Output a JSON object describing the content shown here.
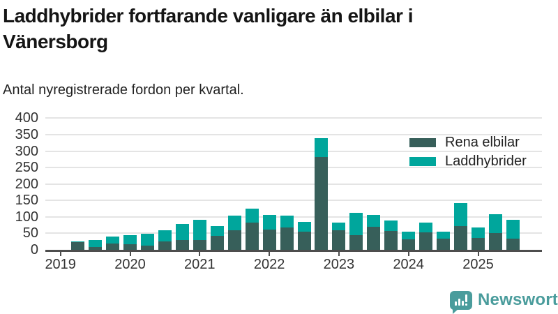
{
  "header": {
    "title": "Laddhybrider fortfarande vanligare än elbilar i Vänersborg",
    "subtitle": "Antal nyregistrerade fordon per kvartal."
  },
  "chart_data": {
    "type": "bar",
    "stacked": true,
    "title": "Laddhybrider fortfarande vanligare än elbilar i Vänersborg",
    "subtitle": "Antal nyregistrerade fordon per kvartal.",
    "x_unit": "quarter",
    "categories": [
      "2019Q2",
      "2019Q3",
      "2019Q4",
      "2020Q1",
      "2020Q2",
      "2020Q3",
      "2020Q4",
      "2021Q1",
      "2021Q2",
      "2021Q3",
      "2021Q4",
      "2022Q1",
      "2022Q2",
      "2022Q3",
      "2022Q4",
      "2023Q1",
      "2023Q2",
      "2023Q3",
      "2023Q4",
      "2024Q1",
      "2024Q2",
      "2024Q3",
      "2024Q4",
      "2025Q1",
      "2025Q2",
      "2025Q3"
    ],
    "series": [
      {
        "name": "Rena elbilar",
        "color": "#375f5a",
        "values": [
          23,
          8,
          19,
          16,
          13,
          25,
          30,
          29,
          42,
          59,
          82,
          61,
          68,
          56,
          283,
          59,
          44,
          70,
          57,
          32,
          54,
          34,
          72,
          37,
          50,
          34
        ]
      },
      {
        "name": "Laddhybrider",
        "color": "#00a69c",
        "values": [
          2,
          22,
          21,
          29,
          36,
          35,
          48,
          63,
          31,
          44,
          44,
          45,
          36,
          28,
          57,
          23,
          68,
          36,
          32,
          24,
          28,
          22,
          71,
          31,
          58,
          58
        ]
      }
    ],
    "ylim": [
      0,
      400
    ],
    "y_ticks": [
      0,
      50,
      100,
      150,
      200,
      250,
      300,
      350,
      400
    ],
    "x_tick_labels": [
      "2019",
      "2020",
      "2021",
      "2022",
      "2023",
      "2024",
      "2025"
    ],
    "grid": "horizontal",
    "legend_position": "top-right"
  },
  "branding": {
    "wordmark": "Newsworthy",
    "color": "#4a9c9c"
  }
}
